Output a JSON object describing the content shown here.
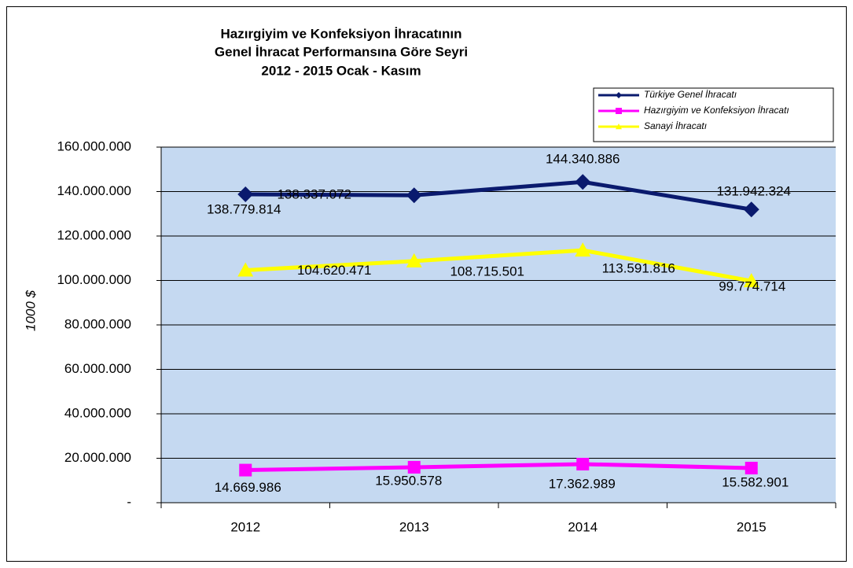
{
  "chart_data": {
    "type": "line",
    "title": [
      "Hazırgiyim ve Konfeksiyon İhracatının",
      "Genel İhracat Performansına Göre Seyri",
      "2012 - 2015 Ocak - Kasım"
    ],
    "y_label": "1000 $",
    "categories": [
      "2012",
      "2013",
      "2014",
      "2015"
    ],
    "series": [
      {
        "name": "Türkiye Genel İhracatı",
        "color": "#0a1a6e",
        "marker": "diamond",
        "values": [
          138779814,
          138337072,
          144340886,
          131942324
        ],
        "value_labels": [
          "138.779.814",
          "138.337.072",
          "144.340.886",
          "131.942.324"
        ]
      },
      {
        "name": "Hazırgiyim ve Konfeksiyon İhracatı",
        "color": "#ff00ff",
        "marker": "square",
        "values": [
          14669986,
          15950578,
          17362989,
          15582901
        ],
        "value_labels": [
          "14.669.986",
          "15.950.578",
          "17.362.989",
          "15.582.901"
        ]
      },
      {
        "name": "Sanayi İhracatı",
        "color": "#ffff00",
        "marker": "triangle",
        "values": [
          104620471,
          108715501,
          113591816,
          99774714
        ],
        "value_labels": [
          "104.620.471",
          "108.715.501",
          "113.591.816",
          "99.774.714"
        ]
      }
    ],
    "ylim": [
      0,
      160000000
    ],
    "yticks": [
      {
        "value": 0,
        "label": "-"
      },
      {
        "value": 20000000,
        "label": "20.000.000"
      },
      {
        "value": 40000000,
        "label": "40.000.000"
      },
      {
        "value": 60000000,
        "label": "60.000.000"
      },
      {
        "value": 80000000,
        "label": "80.000.000"
      },
      {
        "value": 100000000,
        "label": "100.000.000"
      },
      {
        "value": 120000000,
        "label": "120.000.000"
      },
      {
        "value": 140000000,
        "label": "140.000.000"
      },
      {
        "value": 160000000,
        "label": "160.000.000"
      }
    ],
    "grid": true,
    "legend": "top-right",
    "plot_background": "#c5d9f1"
  }
}
